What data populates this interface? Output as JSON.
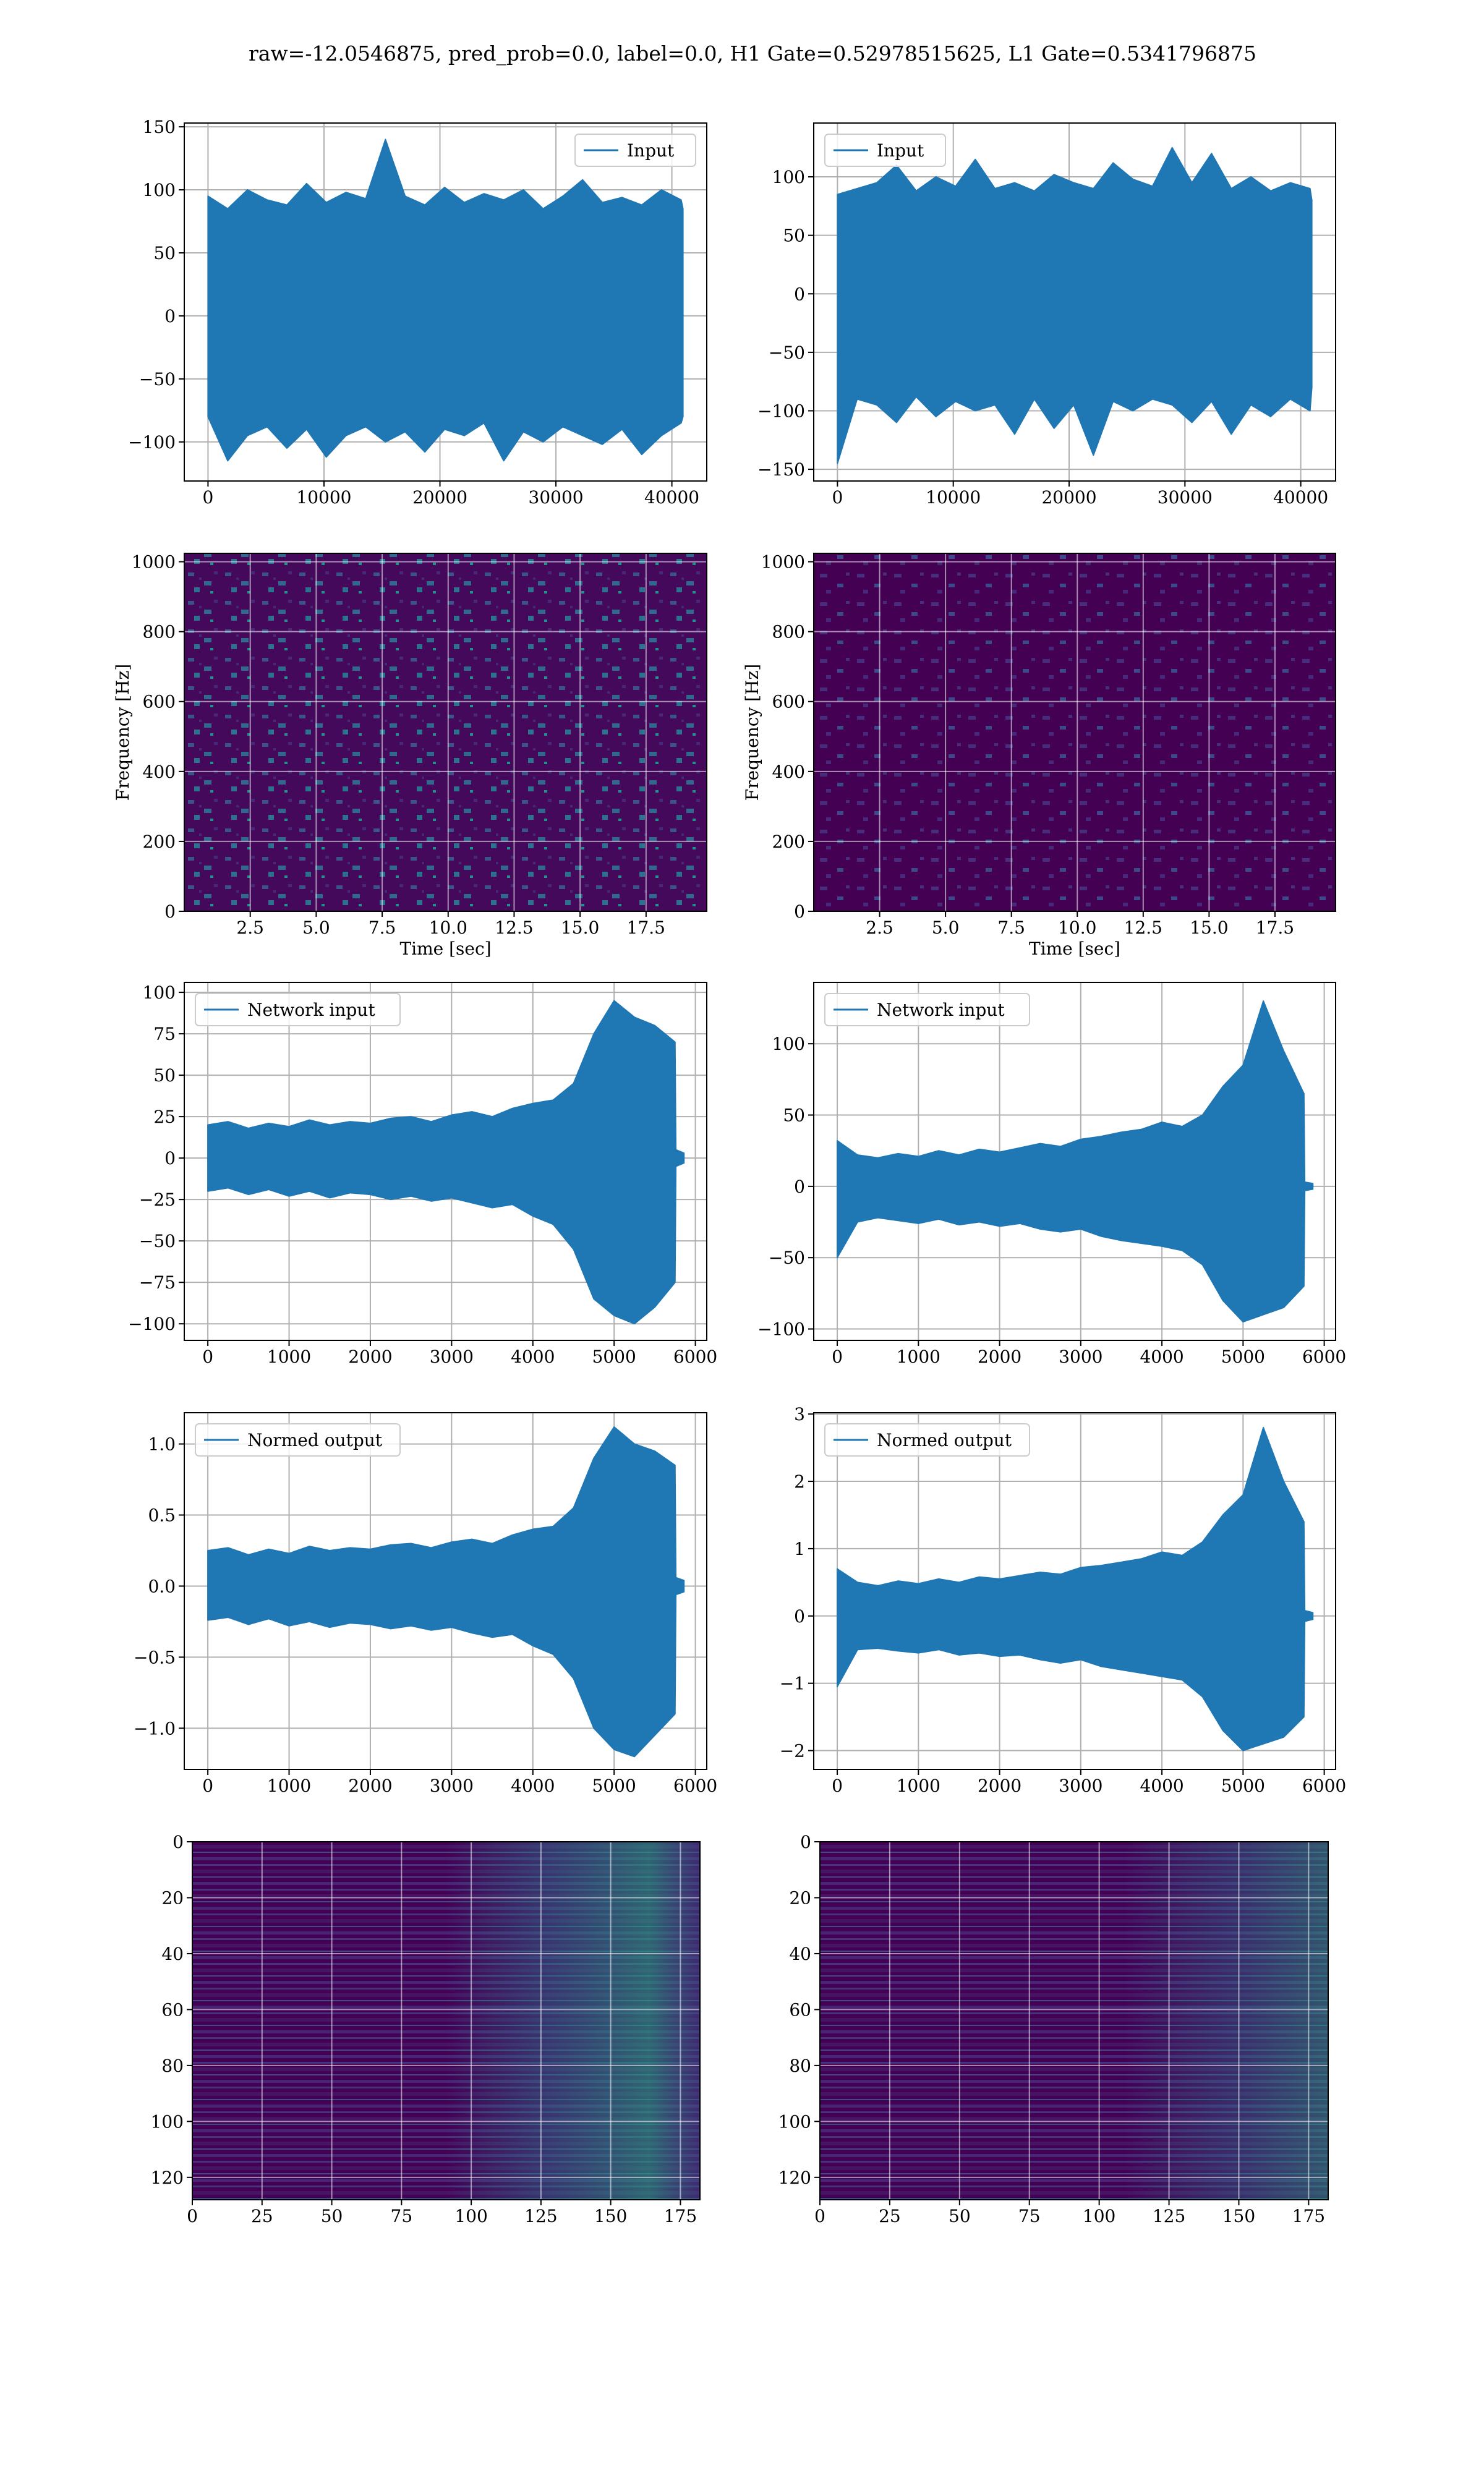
{
  "title": "raw=-12.0546875, pred_prob=0.0, label=0.0, H1 Gate=0.52978515625, L1 Gate=0.5341796875",
  "chart_data": [
    {
      "type": "line",
      "xlim": [
        -2048,
        43008
      ],
      "ylim": [
        -131,
        153
      ],
      "grid": true,
      "legend": "upper right",
      "xticks": [
        0,
        10000,
        20000,
        30000,
        40000
      ],
      "yticks": [
        {
          "value": -100,
          "label": "−100"
        },
        {
          "value": -50,
          "label": "−50"
        },
        0,
        50,
        100,
        150
      ],
      "series": [
        {
          "name": "Input",
          "color": "#1f77b4",
          "x": [
            0,
            1700,
            3400,
            5100,
            6800,
            8500,
            10200,
            11900,
            13600,
            15300,
            17000,
            18700,
            20400,
            22100,
            23800,
            25500,
            27200,
            28900,
            30600,
            32300,
            34000,
            35700,
            37400,
            39100,
            40800,
            40960
          ],
          "upper": [
            95,
            85,
            100,
            92,
            88,
            105,
            90,
            98,
            93,
            140,
            95,
            88,
            102,
            90,
            97,
            92,
            100,
            85,
            95,
            108,
            90,
            94,
            88,
            100,
            92,
            85
          ],
          "lower": [
            -80,
            -115,
            -95,
            -88,
            -105,
            -90,
            -112,
            -95,
            -88,
            -100,
            -92,
            -108,
            -90,
            -95,
            -85,
            -115,
            -92,
            -100,
            -88,
            -95,
            -102,
            -90,
            -110,
            -95,
            -85,
            -80
          ]
        }
      ]
    },
    {
      "type": "line",
      "xlim": [
        -2048,
        43008
      ],
      "ylim": [
        -160,
        146
      ],
      "grid": true,
      "legend": "upper left",
      "xticks": [
        0,
        10000,
        20000,
        30000,
        40000
      ],
      "yticks": [
        {
          "value": -150,
          "label": "−150"
        },
        {
          "value": -100,
          "label": "−100"
        },
        {
          "value": -50,
          "label": "−50"
        },
        0,
        50,
        100
      ],
      "series": [
        {
          "name": "Input",
          "color": "#1f77b4",
          "x": [
            0,
            1700,
            3400,
            5100,
            6800,
            8500,
            10200,
            11900,
            13600,
            15300,
            17000,
            18700,
            20400,
            22100,
            23800,
            25500,
            27200,
            28900,
            30600,
            32300,
            34000,
            35700,
            37400,
            39100,
            40800,
            40960
          ],
          "upper": [
            85,
            90,
            95,
            110,
            88,
            100,
            92,
            115,
            90,
            95,
            88,
            102,
            95,
            90,
            112,
            98,
            92,
            125,
            95,
            120,
            90,
            100,
            88,
            95,
            90,
            80
          ],
          "lower": [
            -145,
            -90,
            -95,
            -110,
            -88,
            -105,
            -92,
            -100,
            -95,
            -120,
            -90,
            -115,
            -95,
            -138,
            -92,
            -100,
            -90,
            -95,
            -110,
            -92,
            -120,
            -95,
            -105,
            -90,
            -100,
            -80
          ]
        }
      ]
    },
    {
      "type": "heatmap",
      "xlim": [
        0,
        19.8
      ],
      "ylim": [
        0,
        1024
      ],
      "grid": true,
      "xlabel": "Time [sec]",
      "ylabel": "Frequency [Hz]",
      "xticks": [
        2.5,
        {
          "value": 5,
          "label": "5.0"
        },
        7.5,
        {
          "value": 10,
          "label": "10.0"
        },
        12.5,
        {
          "value": 15,
          "label": "15.0"
        },
        17.5
      ],
      "yticks": [
        0,
        200,
        400,
        600,
        800,
        1000
      ]
    },
    {
      "type": "heatmap",
      "xlim": [
        0,
        19.8
      ],
      "ylim": [
        0,
        1024
      ],
      "grid": true,
      "xlabel": "Time [sec]",
      "ylabel": "Frequency [Hz]",
      "xticks": [
        2.5,
        {
          "value": 5,
          "label": "5.0"
        },
        7.5,
        {
          "value": 10,
          "label": "10.0"
        },
        12.5,
        {
          "value": 15,
          "label": "15.0"
        },
        17.5
      ],
      "yticks": [
        0,
        200,
        400,
        600,
        800,
        1000
      ]
    },
    {
      "type": "line",
      "xlim": [
        -290,
        6140
      ],
      "ylim": [
        -110,
        106
      ],
      "grid": true,
      "legend": "upper left",
      "xticks": [
        0,
        1000,
        2000,
        3000,
        4000,
        5000,
        6000
      ],
      "yticks": [
        {
          "value": -100,
          "label": "−100"
        },
        {
          "value": -75,
          "label": "−75"
        },
        {
          "value": -50,
          "label": "−50"
        },
        {
          "value": -25,
          "label": "−25"
        },
        0,
        25,
        50,
        75,
        100
      ],
      "series": [
        {
          "name": "Network input",
          "color": "#1f77b4",
          "x": [
            0,
            250,
            500,
            750,
            1000,
            1250,
            1500,
            1750,
            2000,
            2250,
            2500,
            2750,
            3000,
            3250,
            3500,
            3750,
            4000,
            4250,
            4500,
            4750,
            5000,
            5250,
            5500,
            5750,
            5760,
            5860
          ],
          "upper": [
            20,
            22,
            18,
            21,
            19,
            23,
            20,
            22,
            21,
            24,
            25,
            22,
            26,
            28,
            25,
            30,
            33,
            35,
            45,
            75,
            95,
            85,
            80,
            70,
            5,
            3
          ],
          "lower": [
            -20,
            -18,
            -22,
            -19,
            -23,
            -20,
            -24,
            -21,
            -22,
            -25,
            -23,
            -26,
            -24,
            -27,
            -30,
            -28,
            -35,
            -40,
            -55,
            -85,
            -95,
            -100,
            -90,
            -75,
            -5,
            -3
          ]
        }
      ]
    },
    {
      "type": "line",
      "xlim": [
        -290,
        6140
      ],
      "ylim": [
        -108,
        143
      ],
      "grid": true,
      "legend": "upper left",
      "xticks": [
        0,
        1000,
        2000,
        3000,
        4000,
        5000,
        6000
      ],
      "yticks": [
        {
          "value": -100,
          "label": "−100"
        },
        {
          "value": -50,
          "label": "−50"
        },
        0,
        50,
        100
      ],
      "series": [
        {
          "name": "Network input",
          "color": "#1f77b4",
          "x": [
            0,
            250,
            500,
            750,
            1000,
            1250,
            1500,
            1750,
            2000,
            2250,
            2500,
            2750,
            3000,
            3250,
            3500,
            3750,
            4000,
            4250,
            4500,
            4750,
            5000,
            5250,
            5500,
            5750,
            5760,
            5860
          ],
          "upper": [
            32,
            22,
            20,
            23,
            21,
            25,
            22,
            26,
            24,
            27,
            30,
            28,
            33,
            35,
            38,
            40,
            45,
            42,
            50,
            70,
            85,
            130,
            95,
            65,
            3,
            2
          ],
          "lower": [
            -50,
            -25,
            -22,
            -24,
            -26,
            -23,
            -27,
            -25,
            -28,
            -26,
            -30,
            -32,
            -30,
            -35,
            -38,
            -40,
            -42,
            -45,
            -55,
            -80,
            -95,
            -90,
            -85,
            -70,
            -3,
            -2
          ]
        }
      ]
    },
    {
      "type": "line",
      "xlim": [
        -290,
        6140
      ],
      "ylim": [
        -1.29,
        1.22
      ],
      "grid": true,
      "legend": "upper left",
      "xticks": [
        0,
        1000,
        2000,
        3000,
        4000,
        5000,
        6000
      ],
      "yticks": [
        {
          "value": -1,
          "label": "−1.0"
        },
        {
          "value": -0.5,
          "label": "−0.5"
        },
        {
          "value": 0,
          "label": "0.0"
        },
        0.5,
        {
          "value": 1,
          "label": "1.0"
        }
      ],
      "series": [
        {
          "name": "Normed output",
          "color": "#1f77b4",
          "x": [
            0,
            250,
            500,
            750,
            1000,
            1250,
            1500,
            1750,
            2000,
            2250,
            2500,
            2750,
            3000,
            3250,
            3500,
            3750,
            4000,
            4250,
            4500,
            4750,
            5000,
            5250,
            5500,
            5750,
            5760,
            5860
          ],
          "upper": [
            0.25,
            0.27,
            0.22,
            0.26,
            0.23,
            0.28,
            0.25,
            0.27,
            0.26,
            0.29,
            0.3,
            0.27,
            0.31,
            0.33,
            0.3,
            0.36,
            0.4,
            0.42,
            0.55,
            0.9,
            1.12,
            1.0,
            0.95,
            0.85,
            0.06,
            0.04
          ],
          "lower": [
            -0.24,
            -0.22,
            -0.27,
            -0.23,
            -0.28,
            -0.25,
            -0.29,
            -0.26,
            -0.27,
            -0.3,
            -0.28,
            -0.31,
            -0.29,
            -0.33,
            -0.36,
            -0.34,
            -0.42,
            -0.48,
            -0.65,
            -1.0,
            -1.15,
            -1.2,
            -1.05,
            -0.9,
            -0.06,
            -0.04
          ]
        }
      ]
    },
    {
      "type": "line",
      "xlim": [
        -290,
        6140
      ],
      "ylim": [
        -2.28,
        3.02
      ],
      "grid": true,
      "legend": "upper left",
      "xticks": [
        0,
        1000,
        2000,
        3000,
        4000,
        5000,
        6000
      ],
      "yticks": [
        {
          "value": -2,
          "label": "−2"
        },
        {
          "value": -1,
          "label": "−1"
        },
        0,
        1,
        2,
        3
      ],
      "series": [
        {
          "name": "Normed output",
          "color": "#1f77b4",
          "x": [
            0,
            250,
            500,
            750,
            1000,
            1250,
            1500,
            1750,
            2000,
            2250,
            2500,
            2750,
            3000,
            3250,
            3500,
            3750,
            4000,
            4250,
            4500,
            4750,
            5000,
            5250,
            5500,
            5750,
            5760,
            5860
          ],
          "upper": [
            0.7,
            0.5,
            0.45,
            0.52,
            0.48,
            0.55,
            0.5,
            0.58,
            0.55,
            0.6,
            0.65,
            0.62,
            0.72,
            0.75,
            0.8,
            0.85,
            0.95,
            0.9,
            1.1,
            1.5,
            1.8,
            2.8,
            2.0,
            1.4,
            0.08,
            0.05
          ],
          "lower": [
            -1.05,
            -0.5,
            -0.48,
            -0.52,
            -0.55,
            -0.5,
            -0.58,
            -0.55,
            -0.6,
            -0.58,
            -0.65,
            -0.7,
            -0.65,
            -0.75,
            -0.8,
            -0.85,
            -0.9,
            -0.95,
            -1.2,
            -1.7,
            -2.0,
            -1.9,
            -1.8,
            -1.5,
            -0.08,
            -0.05
          ]
        }
      ]
    },
    {
      "type": "heatmap",
      "xlim": [
        0,
        182
      ],
      "ylim": [
        128,
        0
      ],
      "grid": true,
      "xticks": [
        0,
        25,
        50,
        75,
        100,
        125,
        150,
        175
      ],
      "yticks": [
        0,
        20,
        40,
        60,
        80,
        100,
        120
      ]
    },
    {
      "type": "heatmap",
      "xlim": [
        0,
        182
      ],
      "ylim": [
        128,
        0
      ],
      "grid": true,
      "xticks": [
        0,
        25,
        50,
        75,
        100,
        125,
        150,
        175
      ],
      "yticks": [
        0,
        20,
        40,
        60,
        80,
        100,
        120
      ]
    }
  ]
}
